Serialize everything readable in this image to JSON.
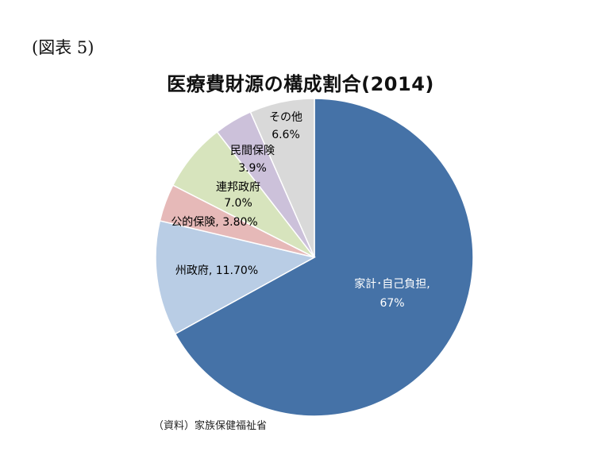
{
  "figure_label": "(図表 5)",
  "source": "（資料）家族保健福祉省",
  "chart_data": {
    "type": "pie",
    "title": "医療費財源の構成割合(2014)",
    "start_angle_deg": 0,
    "direction": "clockwise",
    "slices": [
      {
        "name": "家計･自己負担",
        "value": 67.0,
        "label": [
          "家計･自己負担,",
          "67%"
        ],
        "color": "#4572A7",
        "label_color": "#ffffff"
      },
      {
        "name": "州政府",
        "value": 11.7,
        "label": [
          "州政府, 11.70%"
        ],
        "color": "#B9CDE5",
        "label_color": "#000000"
      },
      {
        "name": "公的保険",
        "value": 3.8,
        "label": [
          "公的保険, 3.80%"
        ],
        "color": "#E6B9B8",
        "label_color": "#000000"
      },
      {
        "name": "連邦政府",
        "value": 7.0,
        "label": [
          "連邦政府",
          "7.0%"
        ],
        "color": "#D7E4BD",
        "label_color": "#000000"
      },
      {
        "name": "民間保険",
        "value": 3.9,
        "label": [
          "民間保険",
          "3.9%"
        ],
        "color": "#CCC1DA",
        "label_color": "#000000"
      },
      {
        "name": "その他",
        "value": 6.6,
        "label": [
          "その他",
          "6.6%"
        ],
        "color": "#D9D9D9",
        "label_color": "#000000"
      }
    ],
    "legend": "none"
  }
}
